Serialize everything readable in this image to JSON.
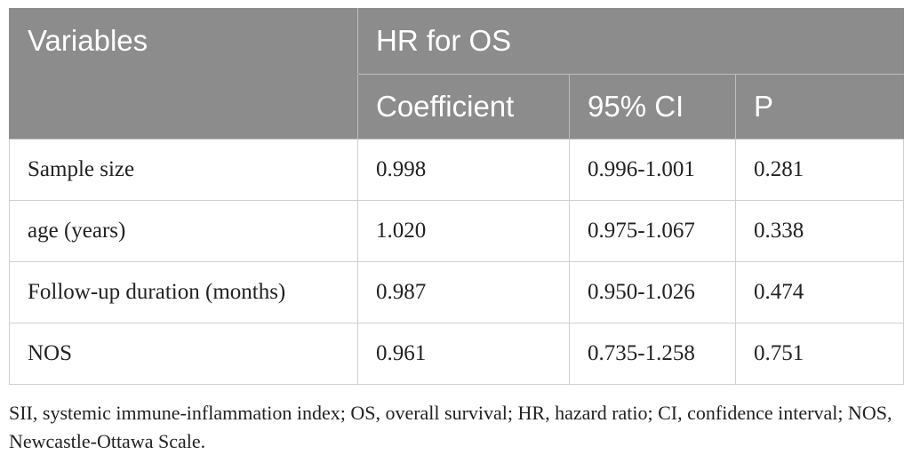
{
  "table": {
    "header": {
      "variables": "Variables",
      "group": "HR for OS",
      "columns": [
        "Coefficient",
        "95% CI",
        "P"
      ]
    },
    "rows": [
      {
        "variable": "Sample size",
        "coefficient": "0.998",
        "ci": "0.996-1.001",
        "p": "0.281"
      },
      {
        "variable": "age (years)",
        "coefficient": "1.020",
        "ci": "0.975-1.067",
        "p": "0.338"
      },
      {
        "variable": "Follow-up duration (months)",
        "coefficient": "0.987",
        "ci": "0.950-1.026",
        "p": "0.474"
      },
      {
        "variable": "NOS",
        "coefficient": "0.961",
        "ci": "0.735-1.258",
        "p": "0.751"
      }
    ]
  },
  "footnote": "SII, systemic immune-inflammation index; OS, overall survival; HR, hazard ratio; CI, confidence interval; NOS, Newcastle-Ottawa Scale.",
  "colors": {
    "header_bg": "#8c8c8c",
    "header_text": "#ffffff",
    "grid": "#d0d0d0"
  }
}
